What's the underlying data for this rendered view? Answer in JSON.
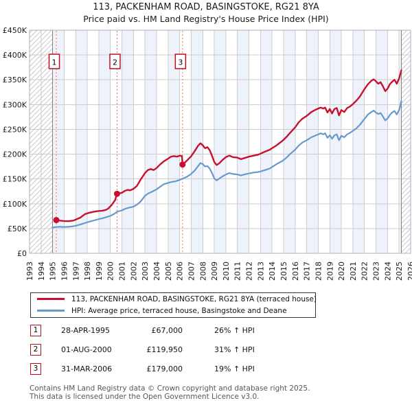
{
  "page": {
    "title": "113, PACKENHAM ROAD, BASINGSTOKE, RG21 8YA",
    "subtitle": "Price paid vs. HM Land Registry's House Price Index (HPI)"
  },
  "chart_data": {
    "type": "line",
    "title": "113, PACKENHAM ROAD, BASINGSTOKE, RG21 8YA — Price paid vs. HPI",
    "x_range": [
      1993,
      2026
    ],
    "y_range": [
      0,
      450000
    ],
    "y_tick_step": 50000,
    "y_tick_labels": [
      "£0",
      "£50K",
      "£100K",
      "£150K",
      "£200K",
      "£250K",
      "£300K",
      "£350K",
      "£400K",
      "£450K"
    ],
    "x_tick_labels": [
      "1993",
      "1994",
      "1995",
      "1996",
      "1997",
      "1998",
      "1999",
      "2000",
      "2001",
      "2002",
      "2003",
      "2004",
      "2005",
      "2006",
      "2007",
      "2008",
      "2009",
      "2010",
      "2011",
      "2012",
      "2013",
      "2014",
      "2015",
      "2016",
      "2017",
      "2018",
      "2019",
      "2020",
      "2021",
      "2022",
      "2023",
      "2024",
      "2025",
      "2026"
    ],
    "grid": true,
    "legend_position": "bottom",
    "band_color": "#eef2fb",
    "grid_color": "#cccccc",
    "frame_color": "#aab0b8",
    "hatch_color": "#c9c9c9",
    "hatch_edge_color": "#808080",
    "hatch_before_x": 1995.0,
    "hatch_after_x": 2025.2,
    "sale_line_color": "#ff6666",
    "sale_marker_color": "#c8102e",
    "series": [
      {
        "name": "113, PACKENHAM ROAD, BASINGSTOKE, RG21 8YA (terraced house)",
        "color": "#c8102e",
        "width": 2.4,
        "points": [
          [
            1995.32,
            67000
          ],
          [
            1995.6,
            66000
          ],
          [
            1996.0,
            65000
          ],
          [
            1996.4,
            64800
          ],
          [
            1996.8,
            66000
          ],
          [
            1997.0,
            68000
          ],
          [
            1997.4,
            72000
          ],
          [
            1997.8,
            79000
          ],
          [
            1998.2,
            82000
          ],
          [
            1998.6,
            84000
          ],
          [
            1999.0,
            85500
          ],
          [
            1999.3,
            86000
          ],
          [
            1999.6,
            87500
          ],
          [
            1999.8,
            90000
          ],
          [
            2000.1,
            97000
          ],
          [
            2000.4,
            107000
          ],
          [
            2000.58,
            119950
          ],
          [
            2000.8,
            121000
          ],
          [
            2001.0,
            122000
          ],
          [
            2001.25,
            126000
          ],
          [
            2001.5,
            128000
          ],
          [
            2001.7,
            127000
          ],
          [
            2002.0,
            130000
          ],
          [
            2002.3,
            136000
          ],
          [
            2002.6,
            148000
          ],
          [
            2003.0,
            162000
          ],
          [
            2003.25,
            168000
          ],
          [
            2003.5,
            170000
          ],
          [
            2003.75,
            168000
          ],
          [
            2004.0,
            172000
          ],
          [
            2004.3,
            179000
          ],
          [
            2004.6,
            185000
          ],
          [
            2005.0,
            191000
          ],
          [
            2005.25,
            195000
          ],
          [
            2005.5,
            196000
          ],
          [
            2005.75,
            195000
          ],
          [
            2006.0,
            197000
          ],
          [
            2006.2,
            196000
          ],
          [
            2006.25,
            179000
          ],
          [
            2006.5,
            184000
          ],
          [
            2006.75,
            190000
          ],
          [
            2007.0,
            196000
          ],
          [
            2007.3,
            206000
          ],
          [
            2007.6,
            217000
          ],
          [
            2007.8,
            222000
          ],
          [
            2008.0,
            218000
          ],
          [
            2008.2,
            212000
          ],
          [
            2008.4,
            214000
          ],
          [
            2008.6,
            208000
          ],
          [
            2008.8,
            197000
          ],
          [
            2009.0,
            184000
          ],
          [
            2009.2,
            178000
          ],
          [
            2009.45,
            182000
          ],
          [
            2009.7,
            188000
          ],
          [
            2010.0,
            194000
          ],
          [
            2010.3,
            197000
          ],
          [
            2010.6,
            194000
          ],
          [
            2011.0,
            193000
          ],
          [
            2011.3,
            190000
          ],
          [
            2011.6,
            192000
          ],
          [
            2012.0,
            195000
          ],
          [
            2012.4,
            197000
          ],
          [
            2012.8,
            199000
          ],
          [
            2013.0,
            201000
          ],
          [
            2013.4,
            205000
          ],
          [
            2013.8,
            209000
          ],
          [
            2014.0,
            212000
          ],
          [
            2014.4,
            218000
          ],
          [
            2014.8,
            225000
          ],
          [
            2015.0,
            229000
          ],
          [
            2015.3,
            236000
          ],
          [
            2015.6,
            244000
          ],
          [
            2016.0,
            254000
          ],
          [
            2016.3,
            264000
          ],
          [
            2016.6,
            271000
          ],
          [
            2017.0,
            277000
          ],
          [
            2017.4,
            285000
          ],
          [
            2017.8,
            290000
          ],
          [
            2018.0,
            292000
          ],
          [
            2018.2,
            294000
          ],
          [
            2018.45,
            292000
          ],
          [
            2018.6,
            294000
          ],
          [
            2018.8,
            284000
          ],
          [
            2019.0,
            291000
          ],
          [
            2019.2,
            282000
          ],
          [
            2019.4,
            291000
          ],
          [
            2019.6,
            293000
          ],
          [
            2019.8,
            278000
          ],
          [
            2020.0,
            289000
          ],
          [
            2020.25,
            285000
          ],
          [
            2020.5,
            293000
          ],
          [
            2020.75,
            296000
          ],
          [
            2021.0,
            301000
          ],
          [
            2021.3,
            308000
          ],
          [
            2021.6,
            316000
          ],
          [
            2022.0,
            331000
          ],
          [
            2022.3,
            341000
          ],
          [
            2022.6,
            348000
          ],
          [
            2022.8,
            351000
          ],
          [
            2023.0,
            347000
          ],
          [
            2023.2,
            342000
          ],
          [
            2023.4,
            345000
          ],
          [
            2023.6,
            337000
          ],
          [
            2023.8,
            327000
          ],
          [
            2024.0,
            332000
          ],
          [
            2024.2,
            341000
          ],
          [
            2024.4,
            346000
          ],
          [
            2024.6,
            350000
          ],
          [
            2024.8,
            342000
          ],
          [
            2025.0,
            353000
          ],
          [
            2025.1,
            361000
          ],
          [
            2025.2,
            369000
          ]
        ]
      },
      {
        "name": "HPI: Average price, terraced house, Basingstoke and Deane",
        "color": "#6699cc",
        "width": 2.2,
        "points": [
          [
            1995.0,
            52000
          ],
          [
            1995.3,
            53000
          ],
          [
            1995.6,
            53500
          ],
          [
            1996.0,
            53000
          ],
          [
            1996.4,
            53500
          ],
          [
            1996.8,
            54500
          ],
          [
            1997.0,
            55500
          ],
          [
            1997.4,
            58000
          ],
          [
            1997.8,
            61000
          ],
          [
            1998.2,
            64000
          ],
          [
            1998.6,
            66500
          ],
          [
            1999.0,
            69000
          ],
          [
            1999.3,
            70500
          ],
          [
            1999.6,
            72500
          ],
          [
            2000.0,
            75500
          ],
          [
            2000.3,
            79000
          ],
          [
            2000.6,
            84000
          ],
          [
            2001.0,
            86500
          ],
          [
            2001.3,
            90000
          ],
          [
            2001.6,
            92000
          ],
          [
            2002.0,
            94000
          ],
          [
            2002.3,
            98000
          ],
          [
            2002.6,
            104000
          ],
          [
            2003.0,
            116000
          ],
          [
            2003.3,
            121000
          ],
          [
            2003.6,
            124000
          ],
          [
            2004.0,
            129000
          ],
          [
            2004.3,
            134000
          ],
          [
            2004.6,
            139000
          ],
          [
            2005.0,
            142000
          ],
          [
            2005.3,
            144000
          ],
          [
            2005.6,
            145000
          ],
          [
            2006.0,
            148000
          ],
          [
            2006.3,
            151000
          ],
          [
            2006.6,
            154000
          ],
          [
            2007.0,
            160000
          ],
          [
            2007.3,
            167000
          ],
          [
            2007.6,
            176000
          ],
          [
            2007.8,
            182000
          ],
          [
            2008.0,
            180000
          ],
          [
            2008.2,
            175000
          ],
          [
            2008.4,
            176000
          ],
          [
            2008.6,
            171000
          ],
          [
            2008.8,
            162000
          ],
          [
            2009.0,
            151000
          ],
          [
            2009.2,
            147000
          ],
          [
            2009.45,
            151000
          ],
          [
            2009.7,
            155000
          ],
          [
            2010.0,
            159000
          ],
          [
            2010.3,
            162000
          ],
          [
            2010.6,
            160000
          ],
          [
            2011.0,
            159000
          ],
          [
            2011.3,
            157000
          ],
          [
            2011.6,
            159000
          ],
          [
            2012.0,
            161000
          ],
          [
            2012.4,
            163000
          ],
          [
            2012.8,
            164000
          ],
          [
            2013.0,
            165000
          ],
          [
            2013.4,
            168000
          ],
          [
            2013.8,
            171000
          ],
          [
            2014.0,
            174000
          ],
          [
            2014.4,
            180000
          ],
          [
            2014.8,
            185000
          ],
          [
            2015.0,
            188000
          ],
          [
            2015.3,
            194000
          ],
          [
            2015.6,
            201000
          ],
          [
            2016.0,
            209000
          ],
          [
            2016.3,
            217000
          ],
          [
            2016.6,
            223000
          ],
          [
            2017.0,
            228000
          ],
          [
            2017.4,
            234000
          ],
          [
            2017.8,
            238000
          ],
          [
            2018.0,
            240000
          ],
          [
            2018.2,
            242000
          ],
          [
            2018.45,
            240000
          ],
          [
            2018.6,
            242000
          ],
          [
            2018.8,
            233000
          ],
          [
            2019.0,
            238000
          ],
          [
            2019.2,
            231000
          ],
          [
            2019.4,
            238000
          ],
          [
            2019.6,
            240000
          ],
          [
            2019.8,
            228000
          ],
          [
            2020.0,
            237000
          ],
          [
            2020.25,
            234000
          ],
          [
            2020.5,
            240000
          ],
          [
            2020.75,
            243000
          ],
          [
            2021.0,
            247000
          ],
          [
            2021.3,
            252000
          ],
          [
            2021.6,
            259000
          ],
          [
            2022.0,
            271000
          ],
          [
            2022.3,
            280000
          ],
          [
            2022.6,
            285000
          ],
          [
            2022.8,
            288000
          ],
          [
            2023.0,
            284000
          ],
          [
            2023.2,
            281000
          ],
          [
            2023.4,
            283000
          ],
          [
            2023.6,
            276000
          ],
          [
            2023.8,
            268000
          ],
          [
            2024.0,
            272000
          ],
          [
            2024.2,
            279000
          ],
          [
            2024.4,
            284000
          ],
          [
            2024.6,
            287000
          ],
          [
            2024.8,
            280000
          ],
          [
            2025.0,
            289000
          ],
          [
            2025.1,
            297000
          ],
          [
            2025.2,
            307000
          ]
        ]
      }
    ],
    "sales": [
      {
        "label": "1",
        "x": 1995.32,
        "price": 67000
      },
      {
        "label": "2",
        "x": 2000.58,
        "price": 119950
      },
      {
        "label": "3",
        "x": 2006.25,
        "price": 179000
      }
    ]
  },
  "legend": {
    "items": [
      {
        "label": "113, PACKENHAM ROAD, BASINGSTOKE, RG21 8YA (terraced house)",
        "color": "#c8102e"
      },
      {
        "label": "HPI: Average price, terraced house, Basingstoke and Deane",
        "color": "#6699cc"
      }
    ]
  },
  "table": {
    "rows": [
      {
        "num": "1",
        "date": "28-APR-1995",
        "price": "£67,000",
        "vs_hpi": "26% ↑ HPI"
      },
      {
        "num": "2",
        "date": "01-AUG-2000",
        "price": "£119,950",
        "vs_hpi": "31% ↑ HPI"
      },
      {
        "num": "3",
        "date": "31-MAR-2006",
        "price": "£179,000",
        "vs_hpi": "19% ↑ HPI"
      }
    ]
  },
  "footer": {
    "line1": "Contains HM Land Registry data © Crown copyright and database right 2025.",
    "line2": "This data is licensed under the Open Government Licence v3.0."
  }
}
